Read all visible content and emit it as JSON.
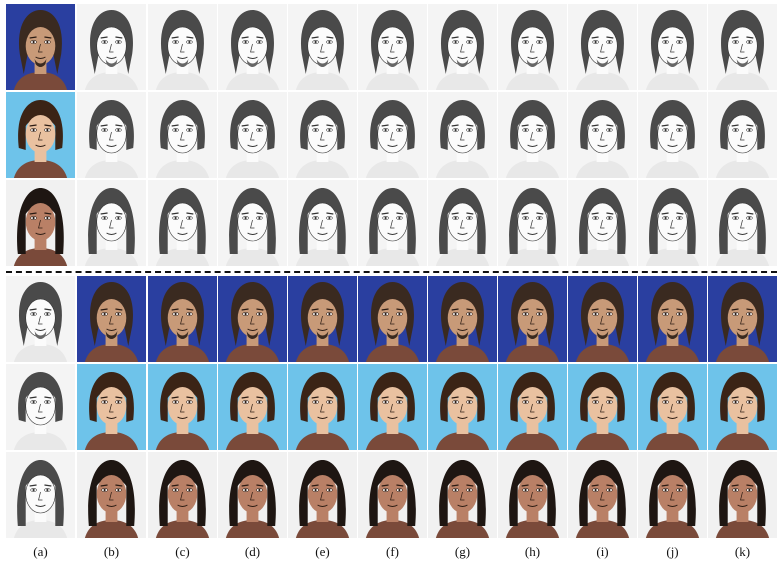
{
  "figure": {
    "column_labels": [
      "(a)",
      "(b)",
      "(c)",
      "(d)",
      "(e)",
      "(f)",
      "(g)",
      "(h)",
      "(i)",
      "(j)",
      "(k)"
    ]
  },
  "subjects": [
    {
      "id": "man",
      "hair": "#3a2a20",
      "skin": "#c89a78",
      "photo_bg": "#2a3fa0",
      "hair_style": "long"
    },
    {
      "id": "girl",
      "hair": "#3b2416",
      "skin": "#e9c1a0",
      "photo_bg": "#6ec3ea",
      "hair_style": "bob"
    },
    {
      "id": "woman",
      "hair": "#1e1612",
      "skin": "#b98066",
      "photo_bg": "#f1f1f1",
      "hair_style": "shoulder"
    }
  ],
  "palette": {
    "sketch_bg": "#f4f4f4",
    "sketch_line": "#333333",
    "divider": "#111111"
  }
}
